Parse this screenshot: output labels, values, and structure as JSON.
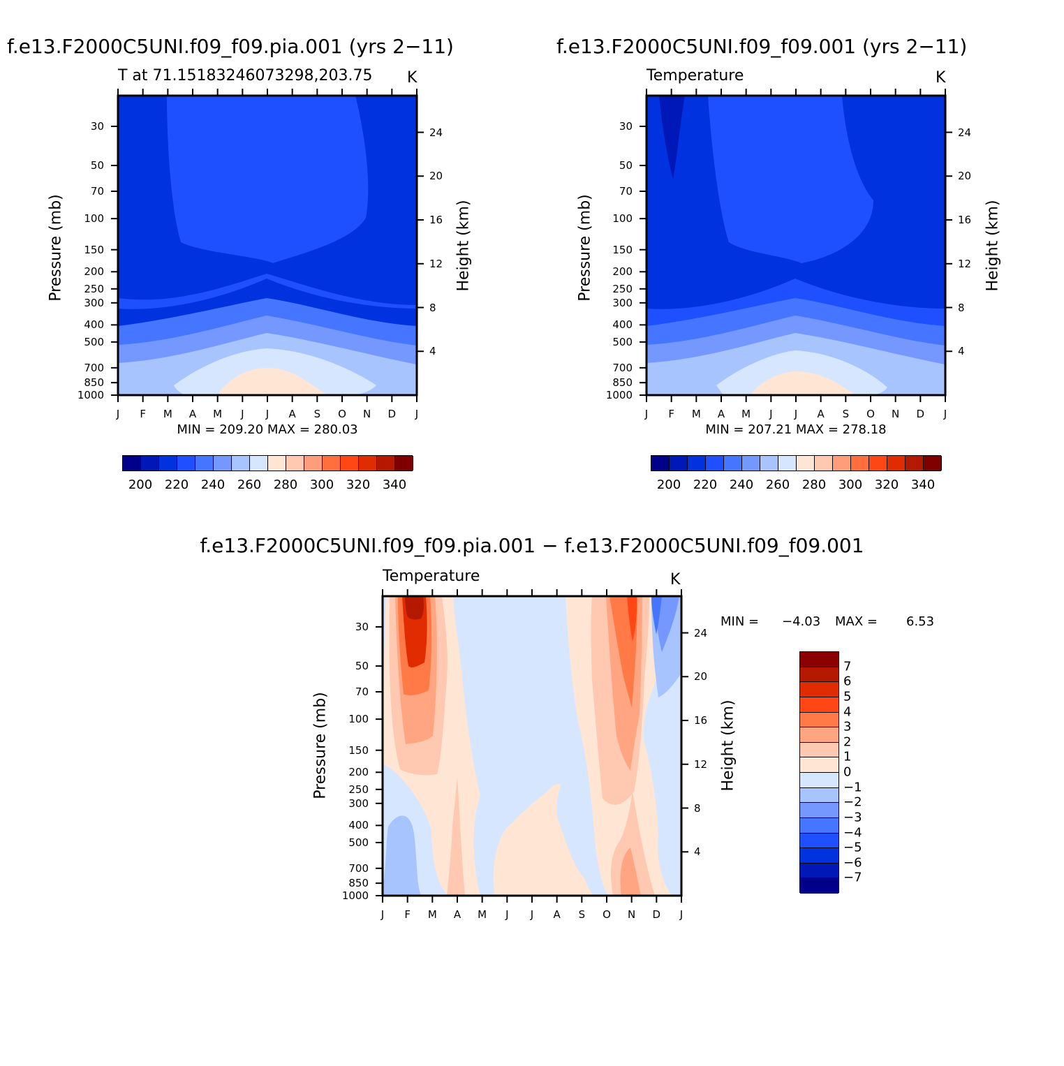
{
  "chart_data": [
    {
      "type": "heatmap",
      "title": "f.e13.F2000C5UNI.f09_f09.pia.001 (yrs 2−11)",
      "subtitle_left": "T at 71.15183246073298,203.75",
      "subtitle_right": "K",
      "xlabel": "",
      "ylabel": "Pressure (mb)",
      "y2label": "Height (km)",
      "x_ticks": [
        "J",
        "F",
        "M",
        "A",
        "M",
        "J",
        "J",
        "A",
        "S",
        "O",
        "N",
        "D",
        "J"
      ],
      "y_ticks": [
        "30",
        "50",
        "70",
        "100",
        "150",
        "200",
        "250",
        "300",
        "400",
        "500",
        "700",
        "850",
        "1000"
      ],
      "y2_ticks": [
        "24",
        "20",
        "16",
        "12",
        "8",
        "4"
      ],
      "min_max_text": "MIN = 209.20 MAX = 280.03",
      "min": 209.2,
      "max": 280.03,
      "colorbar_labels": [
        "200",
        "220",
        "240",
        "260",
        "280",
        "300",
        "320",
        "340"
      ],
      "colorbar_colors": [
        "#00008b",
        "#0018b8",
        "#0032e0",
        "#1e50ff",
        "#4676ff",
        "#7498ff",
        "#a8c4ff",
        "#d6e6ff",
        "#ffe6d4",
        "#ffc8b0",
        "#ff9d7a",
        "#ff6e3c",
        "#ff4614",
        "#e02c00",
        "#b51800",
        "#800000"
      ]
    },
    {
      "type": "heatmap",
      "title": "f.e13.F2000C5UNI.f09_f09.001 (yrs 2−11)",
      "subtitle_left": "Temperature",
      "subtitle_right": "K",
      "xlabel": "",
      "ylabel": "Pressure (mb)",
      "y2label": "Height (km)",
      "x_ticks": [
        "J",
        "F",
        "M",
        "A",
        "M",
        "J",
        "J",
        "A",
        "S",
        "O",
        "N",
        "D",
        "J"
      ],
      "y_ticks": [
        "30",
        "50",
        "70",
        "100",
        "150",
        "200",
        "250",
        "300",
        "400",
        "500",
        "700",
        "850",
        "1000"
      ],
      "y2_ticks": [
        "24",
        "20",
        "16",
        "12",
        "8",
        "4"
      ],
      "min_max_text": "MIN = 207.21 MAX = 278.18",
      "min": 207.21,
      "max": 278.18,
      "colorbar_labels": [
        "200",
        "220",
        "240",
        "260",
        "280",
        "300",
        "320",
        "340"
      ],
      "colorbar_colors": [
        "#00008b",
        "#0018b8",
        "#0032e0",
        "#1e50ff",
        "#4676ff",
        "#7498ff",
        "#a8c4ff",
        "#d6e6ff",
        "#ffe6d4",
        "#ffc8b0",
        "#ff9d7a",
        "#ff6e3c",
        "#ff4614",
        "#e02c00",
        "#b51800",
        "#800000"
      ]
    },
    {
      "type": "heatmap",
      "title": "f.e13.F2000C5UNI.f09_f09.pia.001 − f.e13.F2000C5UNI.f09_f09.001",
      "subtitle_left": "Temperature",
      "subtitle_right": "K",
      "xlabel": "",
      "ylabel": "Pressure (mb)",
      "y2label": "Height (km)",
      "x_ticks": [
        "J",
        "F",
        "M",
        "A",
        "M",
        "J",
        "J",
        "A",
        "S",
        "O",
        "N",
        "D",
        "J"
      ],
      "y_ticks": [
        "30",
        "50",
        "70",
        "100",
        "150",
        "200",
        "250",
        "300",
        "400",
        "500",
        "700",
        "850",
        "1000"
      ],
      "y2_ticks": [
        "24",
        "20",
        "16",
        "12",
        "8",
        "4"
      ],
      "min_label": "MIN =",
      "min_value": "−4.03",
      "max_label": "MAX =",
      "max_value": "6.53",
      "min": -4.03,
      "max": 6.53,
      "colorbar_labels": [
        "7",
        "6",
        "5",
        "4",
        "3",
        "2",
        "1",
        "0",
        "−1",
        "−2",
        "−3",
        "−4",
        "−5",
        "−6",
        "−7"
      ],
      "colorbar_colors": [
        "#8b0000",
        "#b51800",
        "#e02c00",
        "#ff4614",
        "#ff7a46",
        "#ffa582",
        "#ffc8b0",
        "#ffe6d4",
        "#d6e6ff",
        "#a8c4ff",
        "#7498ff",
        "#4676ff",
        "#1e50ff",
        "#0032e0",
        "#0018b8",
        "#00008b"
      ]
    }
  ]
}
